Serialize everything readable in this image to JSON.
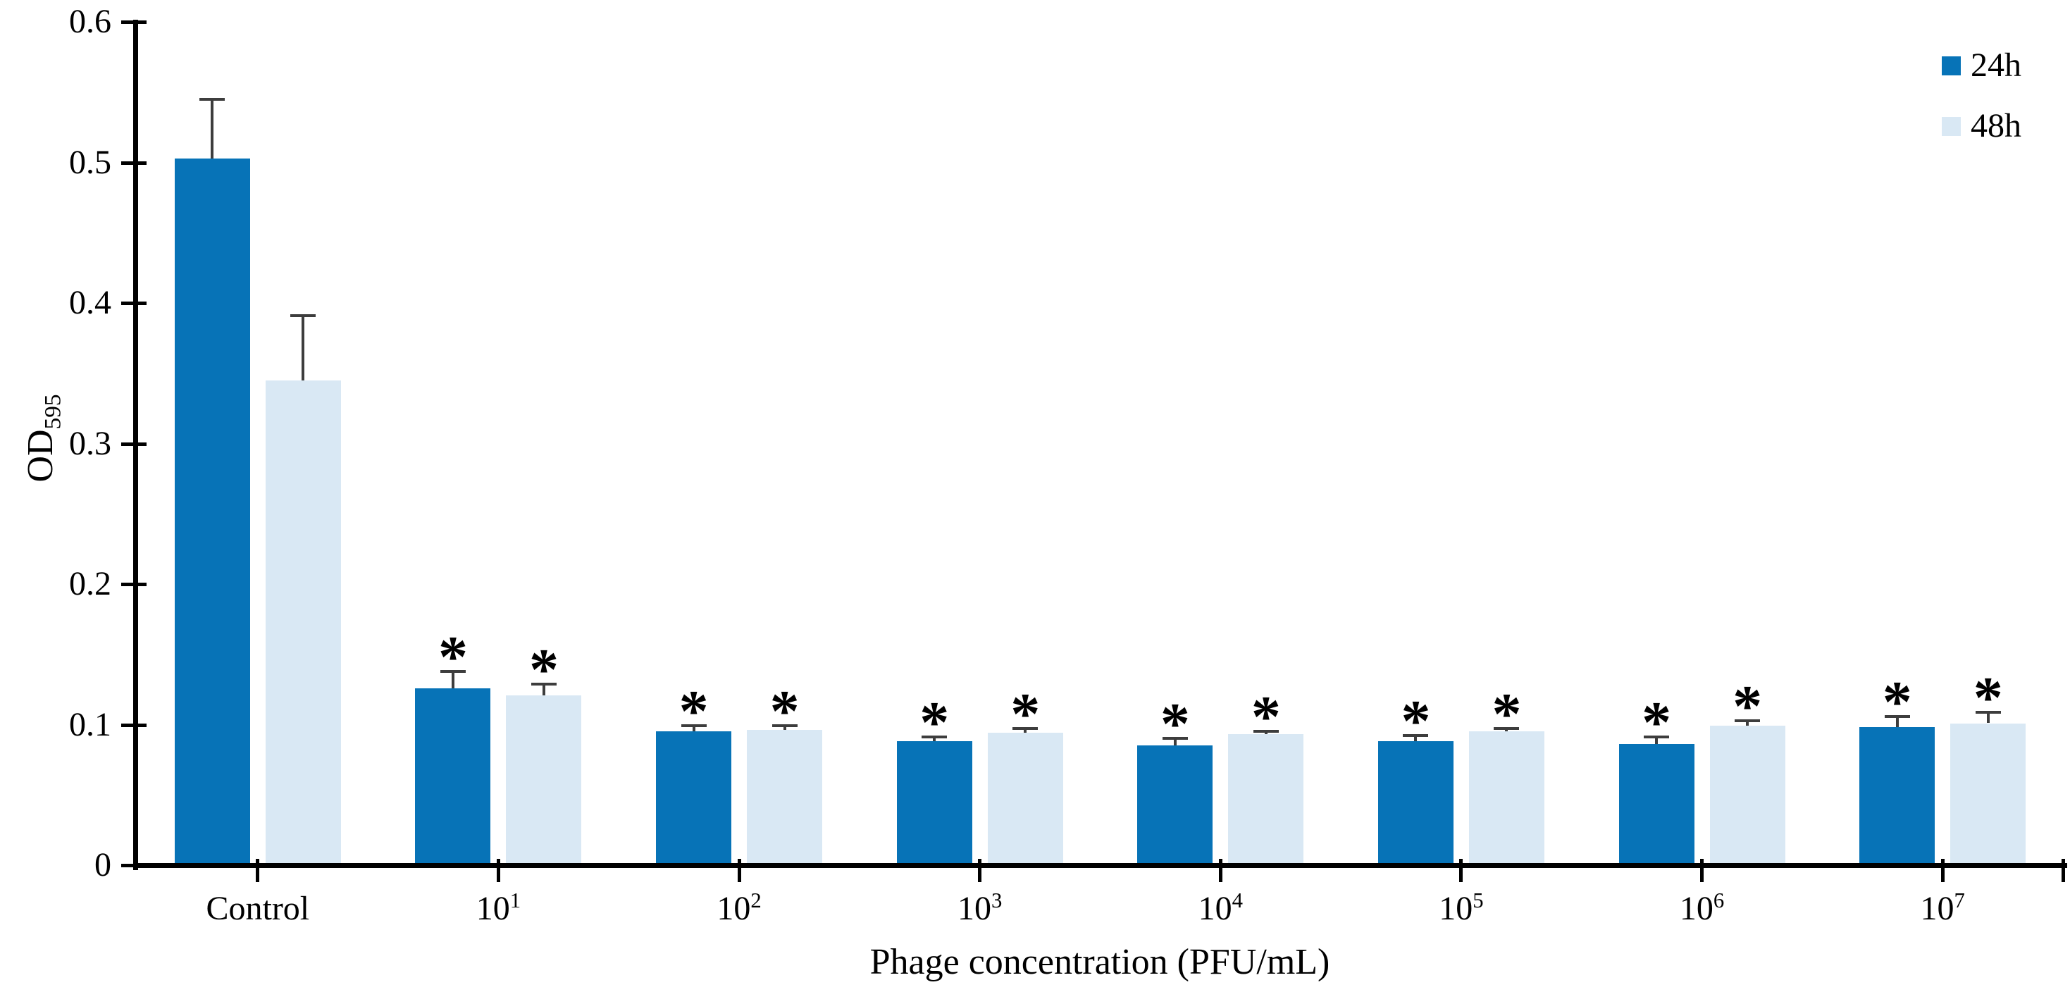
{
  "figure": {
    "background": "#ffffff"
  },
  "chart_data": {
    "type": "bar",
    "title": "",
    "xlabel": "Phage concentration (PFU/mL)",
    "ylabel": {
      "text": "OD",
      "subscript": "595"
    },
    "categories": [
      "Control",
      "10^1",
      "10^2",
      "10^3",
      "10^4",
      "10^5",
      "10^6",
      "10^7"
    ],
    "series": [
      {
        "name": "24h",
        "color": "#0773b7",
        "values": [
          0.503,
          0.126,
          0.095,
          0.088,
          0.085,
          0.088,
          0.086,
          0.098
        ],
        "errors": [
          0.042,
          0.012,
          0.004,
          0.003,
          0.005,
          0.004,
          0.005,
          0.008
        ],
        "significance": [
          "",
          "*",
          "*",
          "*",
          "*",
          "*",
          "*",
          "*"
        ]
      },
      {
        "name": "48h",
        "color": "#d9e8f4",
        "values": [
          0.345,
          0.121,
          0.096,
          0.094,
          0.093,
          0.095,
          0.099,
          0.101
        ],
        "errors": [
          0.046,
          0.008,
          0.003,
          0.003,
          0.002,
          0.002,
          0.004,
          0.008
        ],
        "significance": [
          "",
          "*",
          "*",
          "*",
          "*",
          "*",
          "*",
          "*"
        ]
      }
    ],
    "y_axis": {
      "min": 0,
      "max": 0.6,
      "tick_step": 0.1,
      "tick_labels": [
        "0",
        "0.1",
        "0.2",
        "0.3",
        "0.4",
        "0.5",
        "0.6"
      ]
    },
    "legend": {
      "position": "top-right",
      "entries": [
        "24h",
        "48h"
      ]
    },
    "grid": false,
    "error_bar_color": "#3d3d3d",
    "significance_marker": "*"
  }
}
